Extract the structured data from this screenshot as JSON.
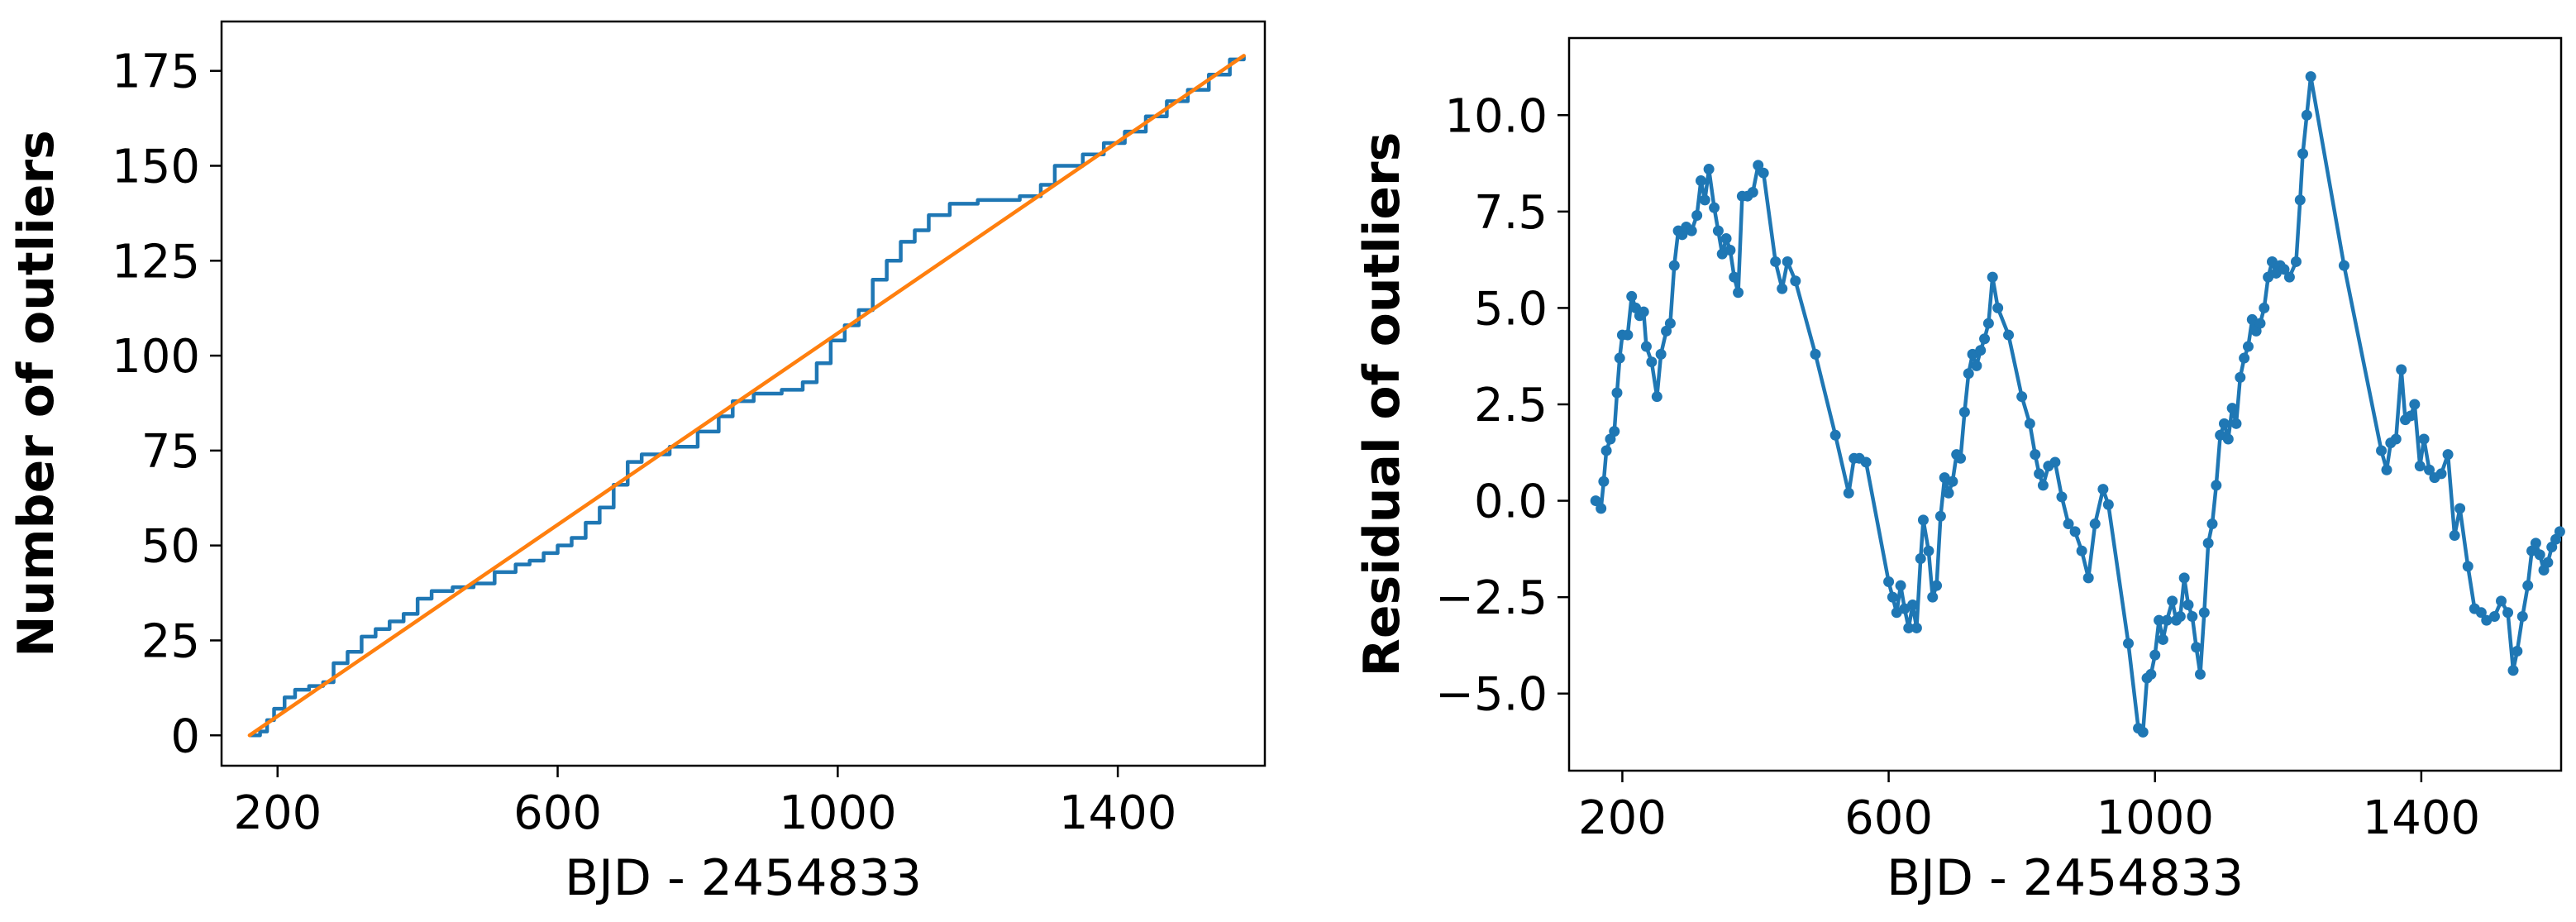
{
  "chart_data": [
    {
      "type": "line",
      "title": "",
      "xlabel": "BJD - 2454833",
      "ylabel": "Number of outliers",
      "xlim": [
        120,
        1610
      ],
      "ylim": [
        -8,
        188
      ],
      "x_ticks": [
        200,
        600,
        1000,
        1400
      ],
      "y_ticks": [
        0,
        25,
        50,
        75,
        100,
        125,
        150,
        175
      ],
      "grid": false,
      "colors": {
        "observed": "#1f77b4",
        "linear": "#ff7f0e"
      },
      "series": [
        {
          "style": "step",
          "points": [
            [
              160,
              0
            ],
            [
              175,
              1
            ],
            [
              185,
              4
            ],
            [
              195,
              7
            ],
            [
              210,
              10
            ],
            [
              225,
              12
            ],
            [
              245,
              13
            ],
            [
              265,
              14
            ],
            [
              280,
              19
            ],
            [
              300,
              22
            ],
            [
              320,
              26
            ],
            [
              340,
              28
            ],
            [
              360,
              30
            ],
            [
              380,
              32
            ],
            [
              400,
              36
            ],
            [
              420,
              38
            ],
            [
              450,
              39
            ],
            [
              480,
              40
            ],
            [
              510,
              43
            ],
            [
              540,
              45
            ],
            [
              560,
              46
            ],
            [
              580,
              48
            ],
            [
              600,
              50
            ],
            [
              620,
              52
            ],
            [
              640,
              56
            ],
            [
              660,
              60
            ],
            [
              680,
              66
            ],
            [
              700,
              72
            ],
            [
              720,
              74
            ],
            [
              760,
              76
            ],
            [
              800,
              80
            ],
            [
              830,
              84
            ],
            [
              850,
              88
            ],
            [
              880,
              90
            ],
            [
              920,
              91
            ],
            [
              950,
              93
            ],
            [
              970,
              98
            ],
            [
              990,
              104
            ],
            [
              1010,
              108
            ],
            [
              1030,
              112
            ],
            [
              1050,
              120
            ],
            [
              1070,
              125
            ],
            [
              1090,
              130
            ],
            [
              1110,
              133
            ],
            [
              1130,
              137
            ],
            [
              1160,
              140
            ],
            [
              1200,
              141
            ],
            [
              1260,
              142
            ],
            [
              1290,
              145
            ],
            [
              1310,
              150
            ],
            [
              1350,
              153
            ],
            [
              1380,
              156
            ],
            [
              1410,
              159
            ],
            [
              1440,
              163
            ],
            [
              1470,
              167
            ],
            [
              1500,
              170
            ],
            [
              1530,
              174
            ],
            [
              1560,
              178
            ],
            [
              1580,
              179
            ]
          ]
        },
        {
          "style": "line",
          "points": [
            [
              160,
              0
            ],
            [
              1580,
              179
            ]
          ]
        }
      ]
    },
    {
      "type": "line",
      "title": "",
      "xlabel": "BJD - 2454833",
      "ylabel": "Residual of outliers",
      "xlim": [
        120,
        1610
      ],
      "ylim": [
        -7,
        12
      ],
      "x_ticks": [
        200,
        600,
        1000,
        1400
      ],
      "y_ticks": [
        -5.0,
        -2.5,
        0.0,
        2.5,
        5.0,
        7.5,
        10.0
      ],
      "y_tick_labels": [
        "−5.0",
        "−2.5",
        "0.0",
        "2.5",
        "5.0",
        "7.5",
        "10.0"
      ],
      "grid": false,
      "markers": true,
      "color": "#1f77b4",
      "series": [
        {
          "points": [
            [
              160,
              0.0
            ],
            [
              168,
              -0.2
            ],
            [
              172,
              0.5
            ],
            [
              176,
              1.3
            ],
            [
              182,
              1.6
            ],
            [
              188,
              1.8
            ],
            [
              192,
              2.8
            ],
            [
              196,
              3.7
            ],
            [
              200,
              4.3
            ],
            [
              208,
              4.3
            ],
            [
              214,
              5.3
            ],
            [
              220,
              5.0
            ],
            [
              226,
              4.8
            ],
            [
              232,
              4.9
            ],
            [
              236,
              4.0
            ],
            [
              244,
              3.6
            ],
            [
              252,
              2.7
            ],
            [
              258,
              3.8
            ],
            [
              266,
              4.4
            ],
            [
              272,
              4.6
            ],
            [
              278,
              6.1
            ],
            [
              284,
              7.0
            ],
            [
              290,
              6.9
            ],
            [
              296,
              7.1
            ],
            [
              304,
              7.0
            ],
            [
              312,
              7.4
            ],
            [
              318,
              8.3
            ],
            [
              324,
              7.8
            ],
            [
              330,
              8.6
            ],
            [
              338,
              7.6
            ],
            [
              344,
              7.0
            ],
            [
              350,
              6.4
            ],
            [
              356,
              6.8
            ],
            [
              362,
              6.5
            ],
            [
              368,
              5.8
            ],
            [
              374,
              5.4
            ],
            [
              380,
              7.9
            ],
            [
              388,
              7.9
            ],
            [
              396,
              8.0
            ],
            [
              404,
              8.7
            ],
            [
              412,
              8.5
            ],
            [
              430,
              6.2
            ],
            [
              440,
              5.5
            ],
            [
              448,
              6.2
            ],
            [
              460,
              5.7
            ],
            [
              490,
              3.8
            ],
            [
              520,
              1.7
            ],
            [
              540,
              0.2
            ],
            [
              548,
              1.1
            ],
            [
              556,
              1.1
            ],
            [
              566,
              1.0
            ],
            [
              600,
              -2.1
            ],
            [
              606,
              -2.5
            ],
            [
              612,
              -2.9
            ],
            [
              618,
              -2.2
            ],
            [
              624,
              -2.8
            ],
            [
              630,
              -3.3
            ],
            [
              636,
              -2.7
            ],
            [
              642,
              -3.3
            ],
            [
              648,
              -1.5
            ],
            [
              652,
              -0.5
            ],
            [
              660,
              -1.3
            ],
            [
              666,
              -2.5
            ],
            [
              672,
              -2.2
            ],
            [
              678,
              -0.4
            ],
            [
              684,
              0.6
            ],
            [
              690,
              0.2
            ],
            [
              696,
              0.5
            ],
            [
              702,
              1.2
            ],
            [
              708,
              1.1
            ],
            [
              714,
              2.3
            ],
            [
              720,
              3.3
            ],
            [
              726,
              3.8
            ],
            [
              732,
              3.5
            ],
            [
              738,
              3.9
            ],
            [
              744,
              4.2
            ],
            [
              750,
              4.6
            ],
            [
              756,
              5.8
            ],
            [
              764,
              5.0
            ],
            [
              780,
              4.3
            ],
            [
              800,
              2.7
            ],
            [
              812,
              2.0
            ],
            [
              820,
              1.2
            ],
            [
              826,
              0.7
            ],
            [
              832,
              0.4
            ],
            [
              840,
              0.9
            ],
            [
              850,
              1.0
            ],
            [
              860,
              0.1
            ],
            [
              870,
              -0.6
            ],
            [
              880,
              -0.8
            ],
            [
              890,
              -1.3
            ],
            [
              900,
              -2.0
            ],
            [
              910,
              -0.6
            ],
            [
              922,
              0.3
            ],
            [
              930,
              -0.1
            ],
            [
              960,
              -3.7
            ],
            [
              975,
              -5.9
            ],
            [
              982,
              -6.0
            ],
            [
              988,
              -4.6
            ],
            [
              994,
              -4.5
            ],
            [
              1000,
              -4.0
            ],
            [
              1006,
              -3.1
            ],
            [
              1012,
              -3.6
            ],
            [
              1018,
              -3.1
            ],
            [
              1026,
              -2.6
            ],
            [
              1032,
              -3.1
            ],
            [
              1038,
              -3.0
            ],
            [
              1044,
              -2.0
            ],
            [
              1050,
              -2.7
            ],
            [
              1056,
              -3.0
            ],
            [
              1062,
              -3.8
            ],
            [
              1068,
              -4.5
            ],
            [
              1074,
              -2.9
            ],
            [
              1080,
              -1.1
            ],
            [
              1086,
              -0.6
            ],
            [
              1092,
              0.4
            ],
            [
              1098,
              1.7
            ],
            [
              1104,
              2.0
            ],
            [
              1110,
              1.6
            ],
            [
              1116,
              2.4
            ],
            [
              1122,
              2.0
            ],
            [
              1128,
              3.2
            ],
            [
              1134,
              3.7
            ],
            [
              1140,
              4.0
            ],
            [
              1146,
              4.7
            ],
            [
              1152,
              4.4
            ],
            [
              1158,
              4.6
            ],
            [
              1164,
              5.0
            ],
            [
              1170,
              5.8
            ],
            [
              1176,
              6.2
            ],
            [
              1182,
              5.9
            ],
            [
              1188,
              6.1
            ],
            [
              1194,
              6.0
            ],
            [
              1202,
              5.8
            ],
            [
              1212,
              6.2
            ],
            [
              1218,
              7.8
            ],
            [
              1222,
              9.0
            ],
            [
              1228,
              10.0
            ],
            [
              1234,
              11.0
            ],
            [
              1284,
              6.1
            ],
            [
              1340,
              1.3
            ],
            [
              1348,
              0.8
            ],
            [
              1354,
              1.5
            ],
            [
              1362,
              1.6
            ],
            [
              1370,
              3.4
            ],
            [
              1376,
              2.1
            ],
            [
              1384,
              2.2
            ],
            [
              1390,
              2.5
            ],
            [
              1398,
              0.9
            ],
            [
              1404,
              1.6
            ],
            [
              1412,
              0.8
            ],
            [
              1420,
              0.6
            ],
            [
              1430,
              0.7
            ],
            [
              1440,
              1.2
            ],
            [
              1450,
              -0.9
            ],
            [
              1458,
              -0.2
            ],
            [
              1470,
              -1.7
            ],
            [
              1480,
              -2.8
            ],
            [
              1490,
              -2.9
            ],
            [
              1498,
              -3.1
            ],
            [
              1510,
              -3.0
            ],
            [
              1520,
              -2.6
            ],
            [
              1530,
              -2.9
            ],
            [
              1538,
              -4.4
            ],
            [
              1544,
              -3.9
            ],
            [
              1552,
              -3.0
            ],
            [
              1560,
              -2.2
            ],
            [
              1566,
              -1.3
            ],
            [
              1572,
              -1.1
            ],
            [
              1578,
              -1.4
            ],
            [
              1584,
              -1.8
            ],
            [
              1590,
              -1.6
            ],
            [
              1596,
              -1.2
            ],
            [
              1602,
              -1.0
            ],
            [
              1608,
              -0.8
            ]
          ]
        }
      ]
    }
  ]
}
